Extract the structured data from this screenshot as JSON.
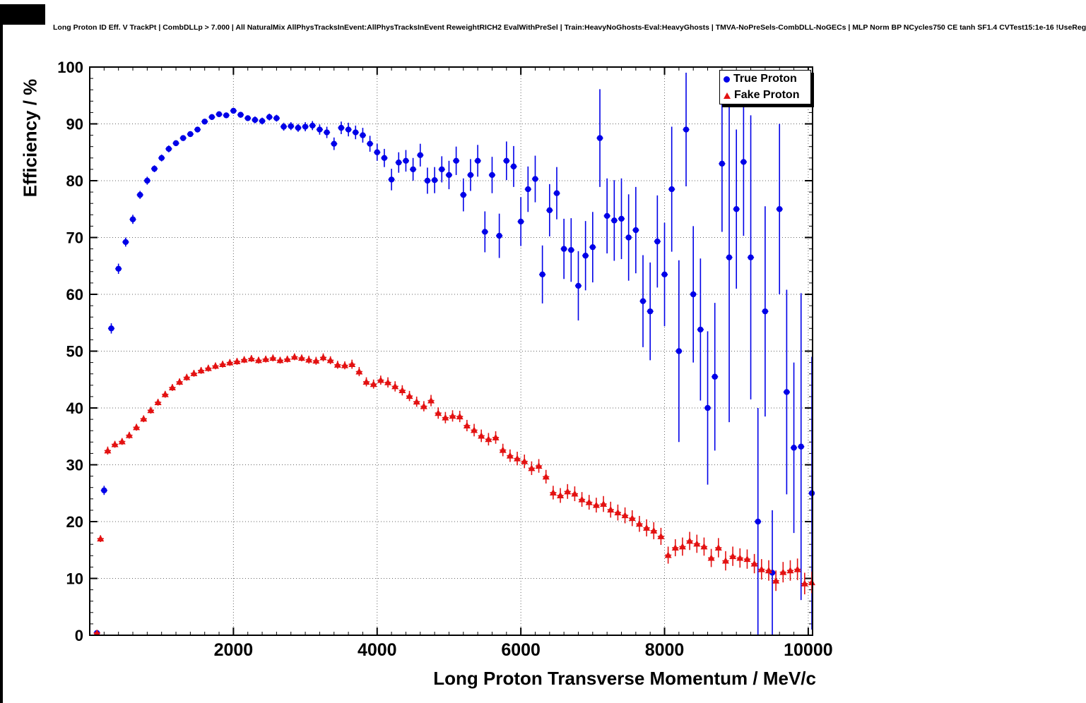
{
  "header": {
    "title": "Long Proton ID Eff. V TrackPt | CombDLLp > 7.000 | All NaturalMix AllPhysTracksInEvent:AllPhysTracksInEvent ReweightRICH2 EvalWithPreSel | Train:HeavyNoGhosts-Eval:HeavyGhosts | TMVA-NoPreSels-CombDLL-NoGECs | MLP Norm BP NCycles750 CE tanh SF1.4 CVTest15:1e-16 !UseReg"
  },
  "chart_data": {
    "type": "scatter",
    "title": "Long Proton ID Eff. V TrackPt",
    "xlabel": "Long Proton Transverse Momentum / MeV/c",
    "ylabel": "Efficiency / %",
    "xlim": [
      0,
      10060
    ],
    "ylim": [
      0,
      100
    ],
    "x_ticks": [
      2000,
      4000,
      6000,
      8000,
      10000
    ],
    "x_tick_labels": [
      "2000",
      "4000",
      "6000",
      "8000",
      "10000"
    ],
    "y_ticks": [
      0,
      10,
      20,
      30,
      40,
      50,
      60,
      70,
      80,
      90,
      100
    ],
    "y_tick_labels": [
      "0",
      "10",
      "20",
      "30",
      "40",
      "50",
      "60",
      "70",
      "80",
      "90",
      "100"
    ],
    "x_minor_step": 200,
    "y_minor_step": 2,
    "grid": "dotted",
    "grid_color": "#333333",
    "legend_position": "top-right",
    "series": [
      {
        "name": "True Proton",
        "color": "#0000e8",
        "marker": "circle",
        "points": [
          [
            100,
            0.4,
            0.3
          ],
          [
            200,
            25.5,
            0.8
          ],
          [
            300,
            54.0,
            0.9
          ],
          [
            400,
            64.5,
            0.9
          ],
          [
            500,
            69.2,
            0.8
          ],
          [
            600,
            73.2,
            0.8
          ],
          [
            700,
            77.5,
            0.7
          ],
          [
            800,
            80.0,
            0.7
          ],
          [
            900,
            82.1,
            0.6
          ],
          [
            1000,
            84.0,
            0.6
          ],
          [
            1100,
            85.6,
            0.6
          ],
          [
            1200,
            86.6,
            0.5
          ],
          [
            1300,
            87.5,
            0.5
          ],
          [
            1400,
            88.2,
            0.5
          ],
          [
            1500,
            89.0,
            0.5
          ],
          [
            1600,
            90.4,
            0.5
          ],
          [
            1700,
            91.2,
            0.5
          ],
          [
            1800,
            91.7,
            0.5
          ],
          [
            1900,
            91.5,
            0.5
          ],
          [
            2000,
            92.3,
            0.5
          ],
          [
            2100,
            91.6,
            0.5
          ],
          [
            2200,
            91.0,
            0.5
          ],
          [
            2300,
            90.7,
            0.6
          ],
          [
            2400,
            90.5,
            0.6
          ],
          [
            2500,
            91.2,
            0.6
          ],
          [
            2600,
            91.0,
            0.6
          ],
          [
            2700,
            89.5,
            0.7
          ],
          [
            2800,
            89.6,
            0.7
          ],
          [
            2900,
            89.3,
            0.7
          ],
          [
            3000,
            89.5,
            0.8
          ],
          [
            3100,
            89.7,
            0.8
          ],
          [
            3200,
            89.0,
            0.9
          ],
          [
            3300,
            88.5,
            1.0
          ],
          [
            3400,
            86.5,
            1.1
          ],
          [
            3500,
            89.3,
            1.1
          ],
          [
            3600,
            89.0,
            1.2
          ],
          [
            3700,
            88.5,
            1.2
          ],
          [
            3800,
            88.0,
            1.3
          ],
          [
            3900,
            86.5,
            1.4
          ],
          [
            4000,
            85.0,
            1.5
          ],
          [
            4100,
            84.0,
            1.6
          ],
          [
            4200,
            80.2,
            1.9
          ],
          [
            4300,
            83.2,
            1.8
          ],
          [
            4400,
            83.5,
            1.9
          ],
          [
            4500,
            82.0,
            2.0
          ],
          [
            4600,
            84.5,
            2.0
          ],
          [
            4700,
            80.0,
            2.3
          ],
          [
            4800,
            80.1,
            2.3
          ],
          [
            4900,
            82.0,
            2.3
          ],
          [
            5000,
            81.0,
            2.5
          ],
          [
            5100,
            83.5,
            2.5
          ],
          [
            5200,
            77.5,
            2.9
          ],
          [
            5300,
            81.0,
            2.8
          ],
          [
            5400,
            83.5,
            2.8
          ],
          [
            5500,
            71.0,
            3.6
          ],
          [
            5600,
            81.0,
            3.2
          ],
          [
            5700,
            70.3,
            3.9
          ],
          [
            5800,
            83.5,
            3.4
          ],
          [
            5900,
            82.5,
            3.6
          ],
          [
            6000,
            72.8,
            4.3
          ],
          [
            6100,
            78.5,
            4.0
          ],
          [
            6200,
            80.3,
            4.1
          ],
          [
            6300,
            63.5,
            5.1
          ],
          [
            6400,
            74.8,
            4.6
          ],
          [
            6500,
            77.8,
            4.6
          ],
          [
            6600,
            68.0,
            5.3
          ],
          [
            6700,
            67.8,
            5.6
          ],
          [
            6800,
            61.5,
            6.1
          ],
          [
            6900,
            66.8,
            6.1
          ],
          [
            7000,
            68.3,
            6.2
          ],
          [
            7100,
            87.5,
            8.6
          ],
          [
            7200,
            73.8,
            6.6
          ],
          [
            7300,
            73.0,
            7.1
          ],
          [
            7400,
            73.3,
            7.1
          ],
          [
            7500,
            70.0,
            7.6
          ],
          [
            7600,
            71.3,
            7.6
          ],
          [
            7700,
            58.8,
            8.1
          ],
          [
            7800,
            57.0,
            8.6
          ],
          [
            7900,
            69.3,
            8.1
          ],
          [
            8000,
            63.5,
            9.1
          ],
          [
            8100,
            78.5,
            11.0
          ],
          [
            8200,
            50.0,
            16.0
          ],
          [
            8300,
            89.0,
            10.0
          ],
          [
            8400,
            60.0,
            12.0
          ],
          [
            8500,
            53.8,
            12.5
          ],
          [
            8600,
            40.0,
            13.5
          ],
          [
            8700,
            45.5,
            13.0
          ],
          [
            8800,
            83.0,
            12.0
          ],
          [
            8900,
            66.5,
            29.0
          ],
          [
            9000,
            75.0,
            14.0
          ],
          [
            9100,
            83.3,
            13.0
          ],
          [
            9200,
            66.5,
            25.0
          ],
          [
            9300,
            20.0,
            20.0
          ],
          [
            9400,
            57.0,
            18.5
          ],
          [
            9500,
            11.0,
            11.0
          ],
          [
            9600,
            75.0,
            15.0
          ],
          [
            9700,
            42.8,
            18.0
          ],
          [
            9800,
            33.0,
            15.0
          ],
          [
            9900,
            33.2,
            27.0
          ],
          [
            10050,
            25.0,
            24.0
          ]
        ]
      },
      {
        "name": "Fake Proton",
        "color": "#e31111",
        "marker": "triangle",
        "points": [
          [
            100,
            0.4,
            0.2
          ],
          [
            150,
            17.0,
            0.6
          ],
          [
            250,
            32.5,
            0.7
          ],
          [
            350,
            33.6,
            0.6
          ],
          [
            450,
            34.1,
            0.6
          ],
          [
            550,
            35.2,
            0.6
          ],
          [
            650,
            36.6,
            0.6
          ],
          [
            750,
            38.1,
            0.6
          ],
          [
            850,
            39.6,
            0.6
          ],
          [
            950,
            41.0,
            0.6
          ],
          [
            1050,
            42.4,
            0.6
          ],
          [
            1150,
            43.6,
            0.6
          ],
          [
            1250,
            44.6,
            0.6
          ],
          [
            1350,
            45.4,
            0.6
          ],
          [
            1450,
            46.1,
            0.6
          ],
          [
            1550,
            46.6,
            0.6
          ],
          [
            1650,
            47.0,
            0.6
          ],
          [
            1750,
            47.4,
            0.6
          ],
          [
            1850,
            47.7,
            0.6
          ],
          [
            1950,
            48.0,
            0.6
          ],
          [
            2050,
            48.2,
            0.6
          ],
          [
            2150,
            48.5,
            0.6
          ],
          [
            2250,
            48.7,
            0.6
          ],
          [
            2350,
            48.4,
            0.6
          ],
          [
            2450,
            48.6,
            0.6
          ],
          [
            2550,
            48.8,
            0.6
          ],
          [
            2650,
            48.4,
            0.6
          ],
          [
            2750,
            48.6,
            0.6
          ],
          [
            2850,
            49.0,
            0.6
          ],
          [
            2950,
            48.8,
            0.6
          ],
          [
            3050,
            48.5,
            0.7
          ],
          [
            3150,
            48.3,
            0.7
          ],
          [
            3250,
            48.9,
            0.7
          ],
          [
            3350,
            48.4,
            0.7
          ],
          [
            3450,
            47.6,
            0.7
          ],
          [
            3550,
            47.5,
            0.7
          ],
          [
            3650,
            47.7,
            0.8
          ],
          [
            3750,
            46.4,
            0.8
          ],
          [
            3850,
            44.6,
            0.8
          ],
          [
            3950,
            44.2,
            0.8
          ],
          [
            4050,
            44.9,
            0.8
          ],
          [
            4150,
            44.5,
            0.9
          ],
          [
            4250,
            43.8,
            0.9
          ],
          [
            4350,
            43.1,
            0.9
          ],
          [
            4450,
            42.1,
            0.9
          ],
          [
            4550,
            41.1,
            0.9
          ],
          [
            4650,
            40.3,
            0.9
          ],
          [
            4750,
            41.3,
            1.0
          ],
          [
            4850,
            39.1,
            1.0
          ],
          [
            4950,
            38.3,
            1.0
          ],
          [
            5050,
            38.6,
            1.0
          ],
          [
            5150,
            38.5,
            1.0
          ],
          [
            5250,
            36.9,
            1.0
          ],
          [
            5350,
            36.1,
            1.1
          ],
          [
            5450,
            35.1,
            1.1
          ],
          [
            5550,
            34.5,
            1.1
          ],
          [
            5650,
            34.8,
            1.1
          ],
          [
            5750,
            32.6,
            1.1
          ],
          [
            5850,
            31.6,
            1.1
          ],
          [
            5950,
            31.1,
            1.2
          ],
          [
            6050,
            30.6,
            1.2
          ],
          [
            6150,
            29.4,
            1.2
          ],
          [
            6250,
            29.8,
            1.2
          ],
          [
            6350,
            27.9,
            1.2
          ],
          [
            6450,
            25.1,
            1.2
          ],
          [
            6550,
            24.6,
            1.3
          ],
          [
            6650,
            25.3,
            1.3
          ],
          [
            6750,
            24.9,
            1.3
          ],
          [
            6850,
            23.9,
            1.3
          ],
          [
            6950,
            23.4,
            1.3
          ],
          [
            7050,
            22.9,
            1.3
          ],
          [
            7150,
            23.1,
            1.4
          ],
          [
            7250,
            22.1,
            1.4
          ],
          [
            7350,
            21.6,
            1.4
          ],
          [
            7450,
            21.1,
            1.4
          ],
          [
            7550,
            20.6,
            1.4
          ],
          [
            7650,
            19.6,
            1.4
          ],
          [
            7750,
            18.9,
            1.5
          ],
          [
            7850,
            18.4,
            1.5
          ],
          [
            7950,
            17.4,
            1.5
          ],
          [
            8050,
            14.1,
            1.5
          ],
          [
            8150,
            15.4,
            1.5
          ],
          [
            8250,
            15.6,
            1.6
          ],
          [
            8350,
            16.6,
            1.6
          ],
          [
            8450,
            16.1,
            1.6
          ],
          [
            8550,
            15.6,
            1.6
          ],
          [
            8650,
            13.6,
            1.6
          ],
          [
            8750,
            15.4,
            1.7
          ],
          [
            8850,
            13.1,
            1.7
          ],
          [
            8950,
            13.9,
            1.7
          ],
          [
            9050,
            13.6,
            1.7
          ],
          [
            9150,
            13.4,
            1.7
          ],
          [
            9250,
            12.6,
            1.7
          ],
          [
            9350,
            11.6,
            1.8
          ],
          [
            9450,
            11.4,
            1.8
          ],
          [
            9550,
            9.6,
            1.8
          ],
          [
            9650,
            11.1,
            1.8
          ],
          [
            9750,
            11.4,
            1.8
          ],
          [
            9850,
            11.6,
            1.9
          ],
          [
            9950,
            9.1,
            1.9
          ],
          [
            10050,
            9.3,
            1.9
          ]
        ]
      }
    ]
  }
}
